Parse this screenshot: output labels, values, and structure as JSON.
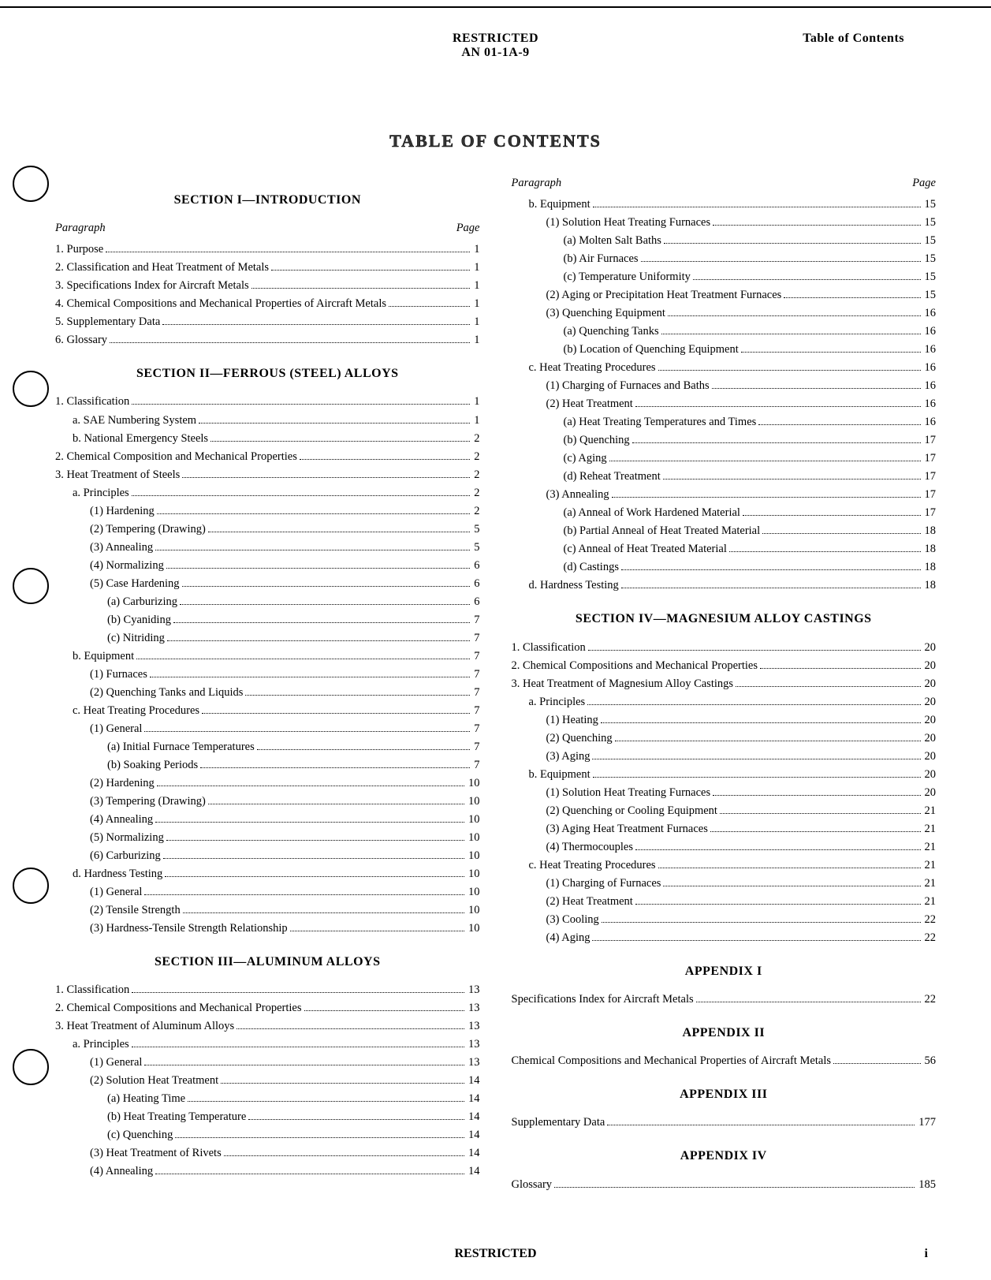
{
  "header": {
    "center_line1": "RESTRICTED",
    "center_line2": "AN 01-1A-9",
    "right": "Table of Contents"
  },
  "main_title": "TABLE OF CONTENTS",
  "column_head": {
    "left": "Paragraph",
    "right": "Page"
  },
  "footer": {
    "center": "RESTRICTED",
    "page": "i"
  },
  "sections": {
    "s1": {
      "title": "SECTION I—INTRODUCTION",
      "items": [
        {
          "ind": 0,
          "label": "1. Purpose",
          "page": "1"
        },
        {
          "ind": 0,
          "label": "2. Classification and Heat Treatment of Metals",
          "page": "1"
        },
        {
          "ind": 0,
          "label": "3. Specifications Index for Aircraft Metals",
          "page": "1"
        },
        {
          "ind": 0,
          "label": "4. Chemical Compositions and Mechanical Properties of Aircraft Metals",
          "page": "1"
        },
        {
          "ind": 0,
          "label": "5. Supplementary Data",
          "page": "1"
        },
        {
          "ind": 0,
          "label": "6. Glossary",
          "page": "1"
        }
      ]
    },
    "s2": {
      "title": "SECTION II—FERROUS (STEEL) ALLOYS",
      "items": [
        {
          "ind": 0,
          "label": "1. Classification",
          "page": "1"
        },
        {
          "ind": 1,
          "label": "a. SAE Numbering System",
          "page": "1"
        },
        {
          "ind": 1,
          "label": "b. National Emergency Steels",
          "page": "2"
        },
        {
          "ind": 0,
          "label": "2. Chemical Composition and Mechanical Properties",
          "page": "2"
        },
        {
          "ind": 0,
          "label": "3. Heat Treatment of Steels",
          "page": "2"
        },
        {
          "ind": 1,
          "label": "a. Principles",
          "page": "2"
        },
        {
          "ind": 2,
          "label": "(1) Hardening",
          "page": "2"
        },
        {
          "ind": 2,
          "label": "(2) Tempering (Drawing)",
          "page": "5"
        },
        {
          "ind": 2,
          "label": "(3) Annealing",
          "page": "5"
        },
        {
          "ind": 2,
          "label": "(4) Normalizing",
          "page": "6"
        },
        {
          "ind": 2,
          "label": "(5) Case Hardening",
          "page": "6"
        },
        {
          "ind": 3,
          "label": "(a) Carburizing",
          "page": "6"
        },
        {
          "ind": 3,
          "label": "(b) Cyaniding",
          "page": "7"
        },
        {
          "ind": 3,
          "label": "(c) Nitriding",
          "page": "7"
        },
        {
          "ind": 1,
          "label": "b. Equipment",
          "page": "7"
        },
        {
          "ind": 2,
          "label": "(1) Furnaces",
          "page": "7"
        },
        {
          "ind": 2,
          "label": "(2) Quenching Tanks and Liquids",
          "page": "7"
        },
        {
          "ind": 1,
          "label": "c. Heat Treating Procedures",
          "page": "7"
        },
        {
          "ind": 2,
          "label": "(1) General",
          "page": "7"
        },
        {
          "ind": 3,
          "label": "(a) Initial Furnace Temperatures",
          "page": "7"
        },
        {
          "ind": 3,
          "label": "(b) Soaking Periods",
          "page": "7"
        },
        {
          "ind": 2,
          "label": "(2) Hardening",
          "page": "10"
        },
        {
          "ind": 2,
          "label": "(3) Tempering (Drawing)",
          "page": "10"
        },
        {
          "ind": 2,
          "label": "(4) Annealing",
          "page": "10"
        },
        {
          "ind": 2,
          "label": "(5) Normalizing",
          "page": "10"
        },
        {
          "ind": 2,
          "label": "(6) Carburizing",
          "page": "10"
        },
        {
          "ind": 1,
          "label": "d. Hardness Testing",
          "page": "10"
        },
        {
          "ind": 2,
          "label": "(1) General",
          "page": "10"
        },
        {
          "ind": 2,
          "label": "(2) Tensile Strength",
          "page": "10"
        },
        {
          "ind": 2,
          "label": "(3) Hardness-Tensile Strength Relationship",
          "page": "10"
        }
      ]
    },
    "s3": {
      "title": "SECTION III—ALUMINUM ALLOYS",
      "items": [
        {
          "ind": 0,
          "label": "1. Classification",
          "page": "13"
        },
        {
          "ind": 0,
          "label": "2. Chemical Compositions and Mechanical Properties",
          "page": "13"
        },
        {
          "ind": 0,
          "label": "3. Heat Treatment of Aluminum Alloys",
          "page": "13"
        },
        {
          "ind": 1,
          "label": "a. Principles",
          "page": "13"
        },
        {
          "ind": 2,
          "label": "(1) General",
          "page": "13"
        },
        {
          "ind": 2,
          "label": "(2) Solution Heat Treatment",
          "page": "14"
        },
        {
          "ind": 3,
          "label": "(a) Heating Time",
          "page": "14"
        },
        {
          "ind": 3,
          "label": "(b) Heat Treating Temperature",
          "page": "14"
        },
        {
          "ind": 3,
          "label": "(c) Quenching",
          "page": "14"
        },
        {
          "ind": 2,
          "label": "(3) Heat Treatment of Rivets",
          "page": "14"
        },
        {
          "ind": 2,
          "label": "(4) Annealing",
          "page": "14"
        }
      ]
    },
    "s3cont": {
      "items": [
        {
          "ind": 1,
          "label": "b. Equipment",
          "page": "15"
        },
        {
          "ind": 2,
          "label": "(1) Solution Heat Treating Furnaces",
          "page": "15"
        },
        {
          "ind": 3,
          "label": "(a) Molten Salt Baths",
          "page": "15"
        },
        {
          "ind": 3,
          "label": "(b) Air Furnaces",
          "page": "15"
        },
        {
          "ind": 3,
          "label": "(c) Temperature Uniformity",
          "page": "15"
        },
        {
          "ind": 2,
          "label": "(2) Aging or Precipitation Heat Treatment Furnaces",
          "page": "15"
        },
        {
          "ind": 2,
          "label": "(3) Quenching Equipment",
          "page": "16"
        },
        {
          "ind": 3,
          "label": "(a) Quenching Tanks",
          "page": "16"
        },
        {
          "ind": 3,
          "label": "(b) Location of Quenching Equipment",
          "page": "16"
        },
        {
          "ind": 1,
          "label": "c. Heat Treating Procedures",
          "page": "16"
        },
        {
          "ind": 2,
          "label": "(1) Charging of Furnaces and Baths",
          "page": "16"
        },
        {
          "ind": 2,
          "label": "(2) Heat Treatment",
          "page": "16"
        },
        {
          "ind": 3,
          "label": "(a) Heat Treating Temperatures and Times",
          "page": "16"
        },
        {
          "ind": 3,
          "label": "(b) Quenching",
          "page": "17"
        },
        {
          "ind": 3,
          "label": "(c) Aging",
          "page": "17"
        },
        {
          "ind": 3,
          "label": "(d) Reheat Treatment",
          "page": "17"
        },
        {
          "ind": 2,
          "label": "(3) Annealing",
          "page": "17"
        },
        {
          "ind": 3,
          "label": "(a) Anneal of Work Hardened Material",
          "page": "17"
        },
        {
          "ind": 3,
          "label": "(b) Partial Anneal of Heat Treated Material",
          "page": "18"
        },
        {
          "ind": 3,
          "label": "(c) Anneal of Heat Treated Material",
          "page": "18"
        },
        {
          "ind": 3,
          "label": "(d) Castings",
          "page": "18"
        },
        {
          "ind": 1,
          "label": "d. Hardness Testing",
          "page": "18"
        }
      ]
    },
    "s4": {
      "title": "SECTION IV—MAGNESIUM ALLOY CASTINGS",
      "items": [
        {
          "ind": 0,
          "label": "1. Classification",
          "page": "20"
        },
        {
          "ind": 0,
          "label": "2. Chemical Compositions and Mechanical Properties",
          "page": "20"
        },
        {
          "ind": 0,
          "label": "3. Heat Treatment of Magnesium Alloy Castings",
          "page": "20"
        },
        {
          "ind": 1,
          "label": "a. Principles",
          "page": "20"
        },
        {
          "ind": 2,
          "label": "(1) Heating",
          "page": "20"
        },
        {
          "ind": 2,
          "label": "(2) Quenching",
          "page": "20"
        },
        {
          "ind": 2,
          "label": "(3) Aging",
          "page": "20"
        },
        {
          "ind": 1,
          "label": "b. Equipment",
          "page": "20"
        },
        {
          "ind": 2,
          "label": "(1) Solution Heat Treating Furnaces",
          "page": "20"
        },
        {
          "ind": 2,
          "label": "(2) Quenching or Cooling Equipment",
          "page": "21"
        },
        {
          "ind": 2,
          "label": "(3) Aging Heat Treatment Furnaces",
          "page": "21"
        },
        {
          "ind": 2,
          "label": "(4) Thermocouples",
          "page": "21"
        },
        {
          "ind": 1,
          "label": "c. Heat Treating Procedures",
          "page": "21"
        },
        {
          "ind": 2,
          "label": "(1) Charging of Furnaces",
          "page": "21"
        },
        {
          "ind": 2,
          "label": "(2) Heat Treatment",
          "page": "21"
        },
        {
          "ind": 2,
          "label": "(3) Cooling",
          "page": "22"
        },
        {
          "ind": 2,
          "label": "(4) Aging",
          "page": "22"
        }
      ]
    },
    "app1": {
      "title": "APPENDIX I",
      "items": [
        {
          "ind": 0,
          "label": "Specifications Index for Aircraft Metals",
          "page": "22"
        }
      ]
    },
    "app2": {
      "title": "APPENDIX II",
      "items": [
        {
          "ind": 0,
          "label": "Chemical Compositions and Mechanical Properties of Aircraft Metals",
          "page": "56"
        }
      ]
    },
    "app3": {
      "title": "APPENDIX III",
      "items": [
        {
          "ind": 0,
          "label": "Supplementary Data",
          "page": "177"
        }
      ]
    },
    "app4": {
      "title": "APPENDIX IV",
      "items": [
        {
          "ind": 0,
          "label": "Glossary",
          "page": "185"
        }
      ]
    }
  }
}
